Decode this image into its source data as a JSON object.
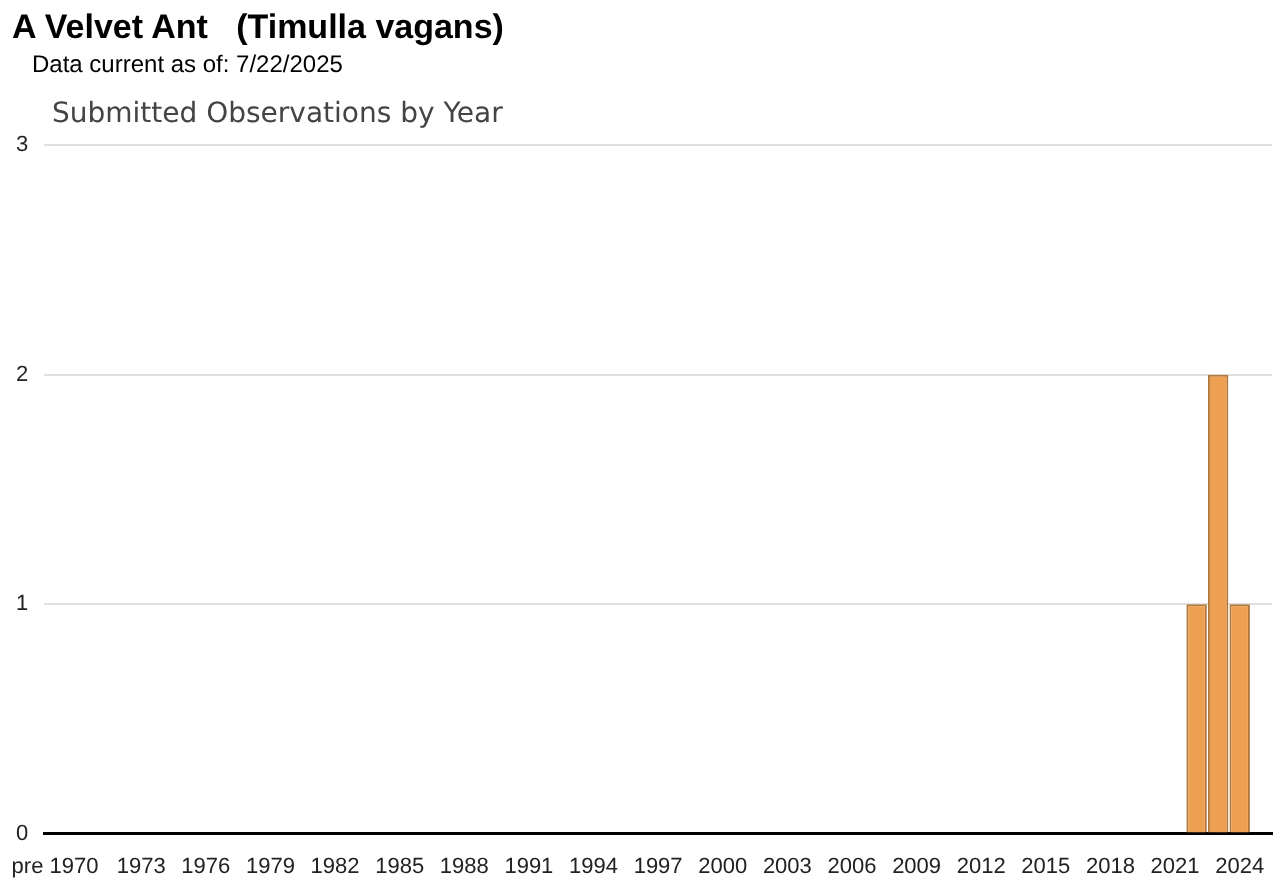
{
  "chart_data": {
    "type": "bar",
    "title": "A Velvet Ant   (Timulla vagans)",
    "subtitle": "Data current as of: 7/22/2025",
    "annotations": [
      "Submitted Observations by Year"
    ],
    "categories": [
      "pre 1970",
      null,
      null,
      null,
      "1973",
      null,
      null,
      "1976",
      null,
      null,
      "1979",
      null,
      null,
      "1982",
      null,
      null,
      "1985",
      null,
      null,
      "1988",
      null,
      null,
      "1991",
      null,
      null,
      "1994",
      null,
      null,
      "1997",
      null,
      null,
      "2000",
      null,
      null,
      "2003",
      null,
      null,
      "2006",
      null,
      null,
      "2009",
      null,
      null,
      "2012",
      null,
      null,
      "2015",
      null,
      null,
      "2018",
      null,
      null,
      "2021",
      null,
      null,
      "2024",
      null
    ],
    "values": [
      0,
      0,
      0,
      0,
      0,
      0,
      0,
      0,
      0,
      0,
      0,
      0,
      0,
      0,
      0,
      0,
      0,
      0,
      0,
      0,
      0,
      0,
      0,
      0,
      0,
      0,
      0,
      0,
      0,
      0,
      0,
      0,
      0,
      0,
      0,
      0,
      0,
      0,
      0,
      0,
      0,
      0,
      0,
      0,
      0,
      0,
      0,
      0,
      0,
      0,
      0,
      0,
      0,
      1,
      2,
      1,
      0
    ],
    "color": "#eda04f",
    "ylim": [
      0,
      3
    ],
    "yticks": [
      0,
      1,
      2,
      3
    ],
    "grid": "y",
    "legend": false
  }
}
